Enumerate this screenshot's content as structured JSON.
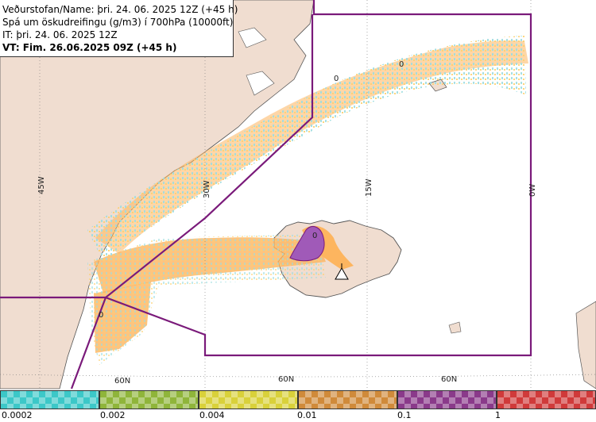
{
  "info": {
    "line1": "Veðurstofan/Name: þri. 24. 06. 2025 12Z (+45 h)",
    "line2": "Spá um öskudreifingu (g/m3) í 700hPa (10000ft)",
    "line3": "IT: þri. 24. 06. 2025 12Z",
    "line4": "VT: Fim. 26.06.2025 09Z (+45 h)"
  },
  "map": {
    "meridians": [
      "45W",
      "30W",
      "15W",
      "0W"
    ],
    "parallels": [
      "60N",
      "60N",
      "60N"
    ],
    "contour_labels": [
      "0",
      "0",
      "0",
      "0"
    ],
    "colors": {
      "land": "#f0ddd0",
      "ocean": "#ffffff",
      "ash_low": "#fdb55f",
      "ash_high": "#a05ab8",
      "boundary": "#7a1a7a"
    }
  },
  "legend": {
    "ticks": [
      "0.0002",
      "0.002",
      "0.004",
      "0.01",
      "0.1",
      "1"
    ],
    "colors": [
      "#3cc8c8",
      "#8fb53a",
      "#d9d13a",
      "#d08a3a",
      "#8a3a8a",
      "#d03a3a"
    ]
  }
}
